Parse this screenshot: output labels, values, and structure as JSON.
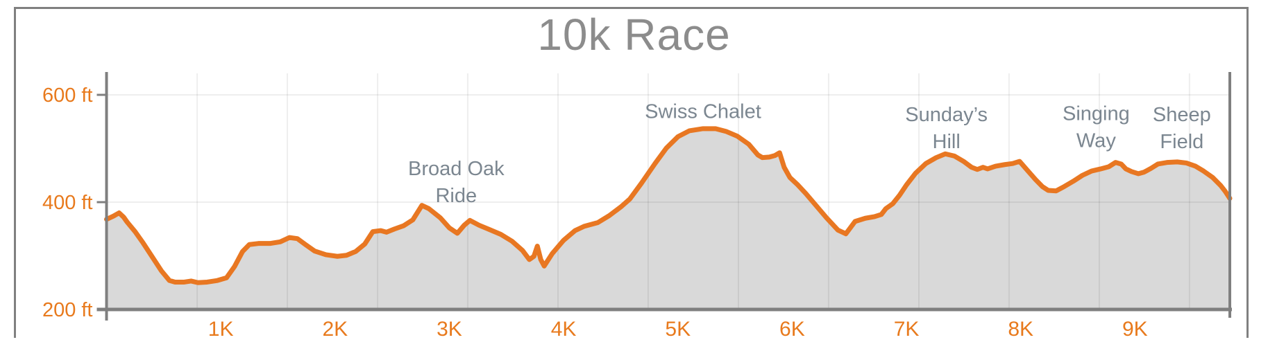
{
  "chart_data": {
    "type": "area",
    "title": "10k Race",
    "x_unit": "K",
    "y_unit": "ft",
    "x_range_k": [
      0,
      9.83
    ],
    "y_range_ft": [
      200,
      640
    ],
    "grid": true,
    "legend": "none",
    "y_ticks": [
      {
        "ft": 600,
        "label": "600 ft"
      },
      {
        "ft": 400,
        "label": "400 ft"
      },
      {
        "ft": 200,
        "label": "200 ft"
      }
    ],
    "x_ticks": [
      {
        "k": 1,
        "label": "1K"
      },
      {
        "k": 2,
        "label": "2K"
      },
      {
        "k": 3,
        "label": "3K"
      },
      {
        "k": 4,
        "label": "4K"
      },
      {
        "k": 5,
        "label": "5K"
      },
      {
        "k": 6,
        "label": "6K"
      },
      {
        "k": 7,
        "label": "7K"
      },
      {
        "k": 8,
        "label": "8K"
      },
      {
        "k": 9,
        "label": "9K"
      }
    ],
    "x_gridlines_k": [
      0.793,
      1.582,
      2.372,
      3.161,
      3.951,
      4.74,
      5.53,
      6.319,
      7.109,
      7.898,
      8.688,
      9.477
    ],
    "y_gridlines_ft": [
      600,
      400
    ],
    "annotations": [
      {
        "lines": [
          "Broad Oak",
          "Ride"
        ],
        "x_k": 3.06,
        "y_ft": 463
      },
      {
        "lines": [
          "Swiss Chalet"
        ],
        "x_k": 5.22,
        "y_ft": 570
      },
      {
        "lines": [
          "Sunday’s",
          "Hill"
        ],
        "x_k": 7.35,
        "y_ft": 564
      },
      {
        "lines": [
          "Singing",
          "Way"
        ],
        "x_k": 8.66,
        "y_ft": 566
      },
      {
        "lines": [
          "Sheep",
          "Field"
        ],
        "x_k": 9.41,
        "y_ft": 564
      }
    ],
    "profile": [
      [
        0.0,
        368
      ],
      [
        0.06,
        374
      ],
      [
        0.11,
        380
      ],
      [
        0.15,
        372
      ],
      [
        0.18,
        363
      ],
      [
        0.25,
        345
      ],
      [
        0.32,
        324
      ],
      [
        0.4,
        298
      ],
      [
        0.48,
        272
      ],
      [
        0.55,
        254
      ],
      [
        0.6,
        251
      ],
      [
        0.68,
        251
      ],
      [
        0.74,
        253
      ],
      [
        0.8,
        250
      ],
      [
        0.88,
        251
      ],
      [
        0.97,
        254
      ],
      [
        1.05,
        259
      ],
      [
        1.12,
        280
      ],
      [
        1.19,
        308
      ],
      [
        1.25,
        321
      ],
      [
        1.33,
        323
      ],
      [
        1.43,
        323
      ],
      [
        1.52,
        326
      ],
      [
        1.6,
        334
      ],
      [
        1.67,
        332
      ],
      [
        1.74,
        321
      ],
      [
        1.82,
        309
      ],
      [
        1.92,
        302
      ],
      [
        2.02,
        299
      ],
      [
        2.1,
        301
      ],
      [
        2.18,
        308
      ],
      [
        2.26,
        322
      ],
      [
        2.33,
        345
      ],
      [
        2.4,
        347
      ],
      [
        2.45,
        344
      ],
      [
        2.52,
        350
      ],
      [
        2.6,
        356
      ],
      [
        2.68,
        367
      ],
      [
        2.76,
        394
      ],
      [
        2.82,
        388
      ],
      [
        2.92,
        371
      ],
      [
        3.0,
        352
      ],
      [
        3.07,
        342
      ],
      [
        3.13,
        357
      ],
      [
        3.18,
        366
      ],
      [
        3.26,
        357
      ],
      [
        3.35,
        349
      ],
      [
        3.45,
        340
      ],
      [
        3.55,
        327
      ],
      [
        3.64,
        310
      ],
      [
        3.7,
        293
      ],
      [
        3.74,
        299
      ],
      [
        3.77,
        318
      ],
      [
        3.8,
        293
      ],
      [
        3.83,
        281
      ],
      [
        3.9,
        304
      ],
      [
        4.0,
        329
      ],
      [
        4.1,
        347
      ],
      [
        4.18,
        355
      ],
      [
        4.3,
        362
      ],
      [
        4.4,
        375
      ],
      [
        4.5,
        391
      ],
      [
        4.58,
        406
      ],
      [
        4.68,
        435
      ],
      [
        4.8,
        472
      ],
      [
        4.9,
        501
      ],
      [
        5.0,
        522
      ],
      [
        5.1,
        533
      ],
      [
        5.22,
        537
      ],
      [
        5.33,
        537
      ],
      [
        5.42,
        532
      ],
      [
        5.52,
        523
      ],
      [
        5.62,
        508
      ],
      [
        5.7,
        488
      ],
      [
        5.74,
        483
      ],
      [
        5.8,
        484
      ],
      [
        5.85,
        487
      ],
      [
        5.89,
        492
      ],
      [
        5.93,
        465
      ],
      [
        5.98,
        446
      ],
      [
        6.05,
        432
      ],
      [
        6.12,
        416
      ],
      [
        6.2,
        396
      ],
      [
        6.3,
        371
      ],
      [
        6.4,
        348
      ],
      [
        6.47,
        341
      ],
      [
        6.55,
        364
      ],
      [
        6.64,
        370
      ],
      [
        6.72,
        373
      ],
      [
        6.78,
        377
      ],
      [
        6.82,
        388
      ],
      [
        6.88,
        397
      ],
      [
        6.94,
        413
      ],
      [
        7.0,
        432
      ],
      [
        7.08,
        454
      ],
      [
        7.17,
        472
      ],
      [
        7.26,
        483
      ],
      [
        7.34,
        490
      ],
      [
        7.42,
        486
      ],
      [
        7.5,
        476
      ],
      [
        7.57,
        465
      ],
      [
        7.62,
        461
      ],
      [
        7.67,
        465
      ],
      [
        7.71,
        462
      ],
      [
        7.78,
        467
      ],
      [
        7.86,
        470
      ],
      [
        7.93,
        472
      ],
      [
        7.99,
        476
      ],
      [
        8.06,
        459
      ],
      [
        8.13,
        442
      ],
      [
        8.19,
        429
      ],
      [
        8.24,
        422
      ],
      [
        8.31,
        421
      ],
      [
        8.38,
        429
      ],
      [
        8.46,
        439
      ],
      [
        8.54,
        450
      ],
      [
        8.62,
        458
      ],
      [
        8.7,
        462
      ],
      [
        8.77,
        466
      ],
      [
        8.83,
        474
      ],
      [
        8.88,
        471
      ],
      [
        8.92,
        462
      ],
      [
        8.97,
        457
      ],
      [
        9.03,
        453
      ],
      [
        9.08,
        456
      ],
      [
        9.14,
        463
      ],
      [
        9.2,
        471
      ],
      [
        9.28,
        474
      ],
      [
        9.37,
        475
      ],
      [
        9.45,
        473
      ],
      [
        9.53,
        467
      ],
      [
        9.6,
        458
      ],
      [
        9.68,
        446
      ],
      [
        9.75,
        431
      ],
      [
        9.79,
        420
      ],
      [
        9.83,
        407
      ]
    ],
    "colors": {
      "line": "#E87722",
      "area_fill": "#D9D9D9",
      "axis": "#7F7F7F",
      "gridline": "rgba(0,0,0,0.065)",
      "tick_text": "#E87A1D",
      "title_text": "#8C8C8C",
      "annotation_text": "#7B8690",
      "frame": "#808080",
      "background": "#FFFFFF"
    }
  }
}
